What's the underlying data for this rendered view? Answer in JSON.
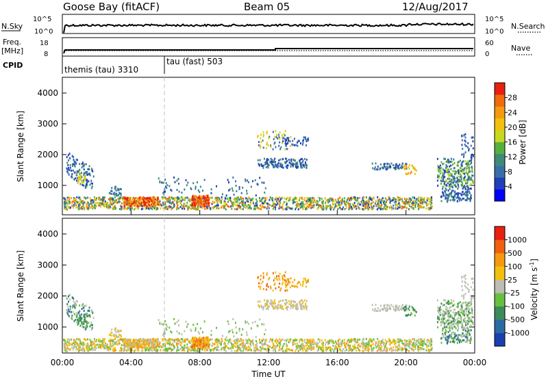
{
  "header": {
    "station": "Goose Bay (fitACF)",
    "beam": "Beam 05",
    "date": "12/Aug/2017"
  },
  "top_panels": {
    "nsky_label": "N.Sky",
    "nsearch_label": "N.Search",
    "noise_tick_top": "10^5",
    "noise_tick_bottom": "10^0",
    "freq_label_line1": "Freq.",
    "freq_label_line2": "[MHz]",
    "freq_tick_top": "18",
    "freq_tick_bottom": "8",
    "nave_label": "Nave",
    "nave_tick_top": "60",
    "nave_tick_bottom": "0",
    "cpid_label": "CPID",
    "cpid_1": "themis (tau) 3310",
    "cpid_2": "tau (fast) 503"
  },
  "power_colorbar": {
    "label": "Power [dB]",
    "ticks": [
      "28",
      "24",
      "20",
      "16",
      "12",
      "8",
      "4"
    ],
    "colors": [
      "#0000ff",
      "#2040b8",
      "#3a6ea8",
      "#3f8a78",
      "#55b040",
      "#c8d820",
      "#f2c010",
      "#f59a10",
      "#f06a10",
      "#e82010"
    ]
  },
  "velocity_colorbar": {
    "label": "Velocity [m s^-1]",
    "ticks": [
      "1000",
      "500",
      "100",
      "25",
      "-25",
      "-100",
      "-500",
      "-1000"
    ],
    "colors": [
      "#1a3fb0",
      "#2a6aa0",
      "#3d8a5a",
      "#66c040",
      "#bdbdb2",
      "#f2c010",
      "#f59a10",
      "#f06010",
      "#e82010"
    ]
  },
  "axes": {
    "ylabel": "Slant Range [km]",
    "xlabel": "Time UT",
    "y_ticks": [
      "1000",
      "2000",
      "3000",
      "4000"
    ],
    "x_ticks": [
      "00:00",
      "04:00",
      "08:00",
      "12:00",
      "16:00",
      "20:00",
      "00:00"
    ]
  },
  "chart_data": {
    "type": "heatmap",
    "title": "Goose Bay (fitACF)  Beam 05  12/Aug/2017",
    "xlabel": "Time UT",
    "ylabel": "Slant Range [km]",
    "xlim_hours": [
      0,
      24
    ],
    "ylim_km": [
      180,
      4600
    ],
    "cpid_boundary_hour": 6,
    "panels": [
      "Power [dB]",
      "Velocity [m s^-1]"
    ],
    "scatter_regions": [
      {
        "t_start": 0.3,
        "t_end": 1.8,
        "r_min": 1100,
        "r_max": 2300,
        "power": "8-16",
        "velocity": "25 to 500"
      },
      {
        "t_start": 0.0,
        "t_end": 22.0,
        "r_min": 200,
        "r_max": 700,
        "power": "4-28",
        "velocity": "-500 to 100"
      },
      {
        "t_start": 3.5,
        "t_end": 5.5,
        "r_min": 300,
        "r_max": 800,
        "power": "20-28",
        "velocity": "-100 to -25"
      },
      {
        "t_start": 11.5,
        "t_end": 14.5,
        "r_min": 1600,
        "r_max": 2800,
        "power": "8-16",
        "velocity": "-25 to -100"
      },
      {
        "t_start": 18.0,
        "t_end": 20.5,
        "r_min": 1400,
        "r_max": 1800,
        "power": "8-12",
        "velocity": "-25 to 25"
      },
      {
        "t_start": 22.0,
        "t_end": 24.0,
        "r_min": 500,
        "r_max": 2800,
        "power": "8-20",
        "velocity": "-25 to 500"
      }
    ],
    "noise_search_log": [
      0,
      5
    ],
    "frequency_mhz": [
      8,
      18
    ],
    "nave": [
      0,
      60
    ]
  }
}
